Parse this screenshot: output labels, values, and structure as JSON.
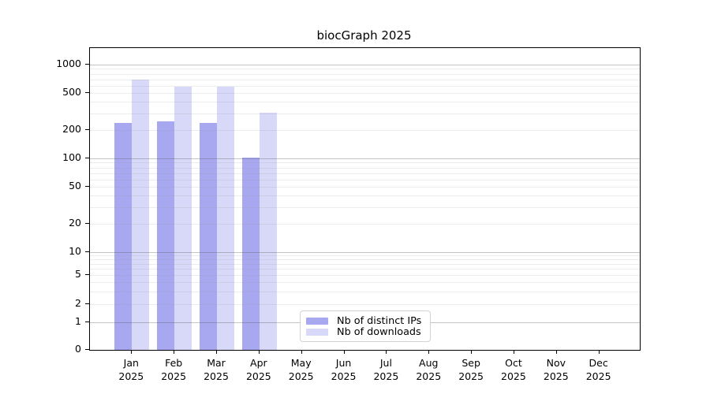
{
  "title": "biocGraph 2025",
  "chart_data": {
    "type": "bar",
    "title": "biocGraph 2025",
    "yscale": "log (0,1,2,5,10,... pseudo-log axis)",
    "grid": true,
    "legend_position": "inside-bottom-center",
    "yticks": [
      0,
      1,
      2,
      5,
      10,
      20,
      50,
      100,
      200,
      500,
      1000
    ],
    "ylim": [
      0,
      1500
    ],
    "categories": [
      "Jan",
      "Feb",
      "Mar",
      "Apr",
      "May",
      "Jun",
      "Jul",
      "Aug",
      "Sep",
      "Oct",
      "Nov",
      "Dec"
    ],
    "x_tick_line2": "2025",
    "series": [
      {
        "name": "Nb of distinct IPs",
        "color": "#a8a8f0",
        "values": [
          240,
          250,
          240,
          102,
          null,
          null,
          null,
          null,
          null,
          null,
          null,
          null
        ]
      },
      {
        "name": "Nb of downloads",
        "color": "#d8d8f8",
        "values": [
          700,
          580,
          580,
          305,
          null,
          null,
          null,
          null,
          null,
          null,
          null,
          null
        ]
      }
    ]
  }
}
